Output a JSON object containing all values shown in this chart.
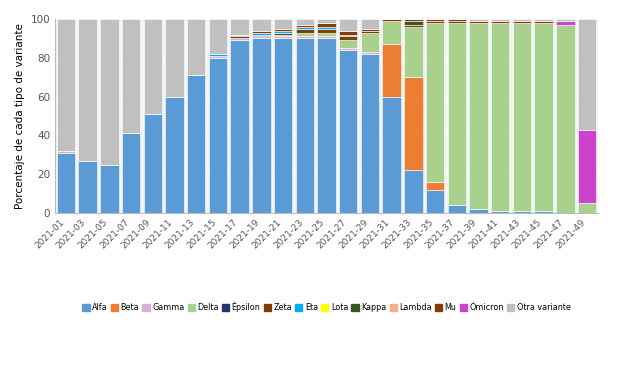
{
  "weeks": [
    "2021-01",
    "2021-03",
    "2021-05",
    "2021-07",
    "2021-09",
    "2021-11",
    "2021-13",
    "2021-15",
    "2021-17",
    "2021-19",
    "2021-21",
    "2021-23",
    "2021-25",
    "2021-27",
    "2021-29",
    "2021-31",
    "2021-33",
    "2021-35",
    "2021-37",
    "2021-39",
    "2021-41",
    "2021-43",
    "2021-45",
    "2021-47",
    "2021-49"
  ],
  "variants": [
    "Alfa",
    "Beta",
    "Gamma",
    "Delta",
    "Épsilon",
    "Zeta",
    "Eta",
    "Lota",
    "Kappa",
    "Lambda",
    "Mu",
    "Ómicron",
    "Otra variante"
  ],
  "colors": {
    "Alfa": "#5b9bd5",
    "Beta": "#ed7d31",
    "Gamma": "#d9afd9",
    "Delta": "#a9d18e",
    "Épsilon": "#1f3864",
    "Zeta": "#833c00",
    "Eta": "#00b0f0",
    "Lota": "#ffff00",
    "Kappa": "#375623",
    "Lambda": "#f4b183",
    "Mu": "#843c0c",
    "Ómicron": "#cc44cc",
    "Otra variante": "#c0c0c0"
  },
  "data": {
    "Alfa": [
      31,
      27,
      25,
      41,
      51,
      60,
      71,
      80,
      89,
      90,
      90,
      90,
      90,
      84,
      82,
      60,
      22,
      12,
      4,
      2,
      1,
      1,
      1,
      0,
      0
    ],
    "Beta": [
      0,
      0,
      0,
      0,
      0,
      0,
      0,
      0,
      0,
      0,
      0,
      0,
      0,
      0,
      0,
      27,
      48,
      4,
      0,
      0,
      0,
      0,
      0,
      0,
      0
    ],
    "Gamma": [
      1,
      0,
      0,
      0,
      0,
      0,
      0,
      1,
      1,
      1,
      1,
      1,
      1,
      1,
      1,
      0,
      0,
      0,
      0,
      0,
      0,
      0,
      0,
      0,
      0
    ],
    "Delta": [
      0,
      0,
      0,
      0,
      0,
      0,
      0,
      0,
      0,
      0,
      1,
      2,
      2,
      4,
      10,
      12,
      26,
      82,
      94,
      96,
      97,
      97,
      97,
      97,
      5
    ],
    "Épsilon": [
      0,
      0,
      0,
      0,
      0,
      0,
      0,
      0,
      0,
      0,
      0,
      0,
      0,
      0,
      0,
      0,
      0,
      0,
      0,
      0,
      0,
      0,
      0,
      0,
      0
    ],
    "Zeta": [
      0,
      0,
      0,
      0,
      0,
      0,
      0,
      0,
      1,
      1,
      1,
      2,
      2,
      2,
      1,
      1,
      1,
      1,
      1,
      0,
      0,
      0,
      0,
      0,
      0
    ],
    "Eta": [
      0,
      0,
      0,
      0,
      0,
      0,
      0,
      1,
      1,
      1,
      1,
      1,
      1,
      1,
      0,
      0,
      0,
      0,
      0,
      0,
      0,
      0,
      0,
      0,
      0
    ],
    "Lota": [
      0,
      0,
      0,
      0,
      0,
      0,
      0,
      0,
      0,
      0,
      0,
      0,
      0,
      0,
      0,
      0,
      0,
      0,
      0,
      0,
      0,
      0,
      0,
      0,
      0
    ],
    "Kappa": [
      0,
      0,
      0,
      0,
      0,
      0,
      0,
      0,
      0,
      0,
      0,
      0,
      0,
      0,
      0,
      0,
      2,
      0,
      0,
      0,
      0,
      0,
      0,
      0,
      0
    ],
    "Lambda": [
      0,
      0,
      0,
      0,
      0,
      0,
      0,
      0,
      0,
      0,
      0,
      0,
      0,
      0,
      0,
      0,
      0,
      0,
      0,
      0,
      0,
      0,
      0,
      0,
      0
    ],
    "Mu": [
      0,
      0,
      0,
      0,
      0,
      0,
      0,
      0,
      0,
      1,
      1,
      1,
      2,
      2,
      1,
      0,
      1,
      1,
      1,
      1,
      1,
      1,
      1,
      0,
      0
    ],
    "Ómicron": [
      0,
      0,
      0,
      0,
      0,
      0,
      0,
      0,
      0,
      0,
      0,
      0,
      0,
      0,
      0,
      0,
      0,
      0,
      0,
      0,
      0,
      0,
      0,
      2,
      38
    ],
    "Otra variante": [
      68,
      73,
      75,
      59,
      49,
      40,
      29,
      18,
      8,
      6,
      5,
      3,
      2,
      6,
      5,
      0,
      0,
      0,
      0,
      1,
      1,
      1,
      1,
      1,
      57
    ]
  },
  "ylabel": "Porcentaje de cada tipo de variante",
  "ylim": [
    0,
    100
  ],
  "bg_color": "#ffffff",
  "plot_bg": "#f5f5f5"
}
